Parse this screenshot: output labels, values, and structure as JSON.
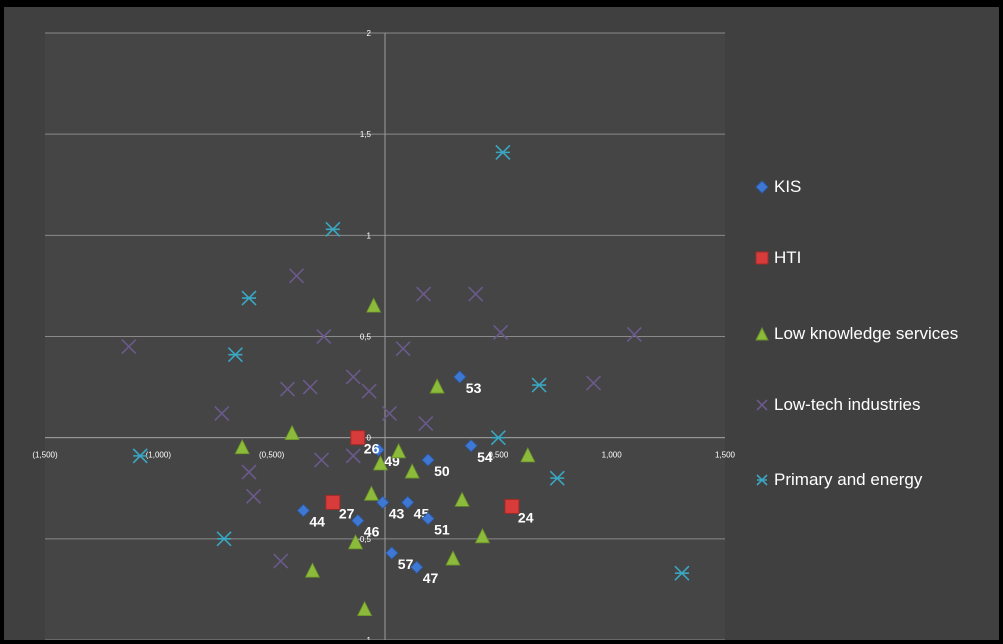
{
  "chart_data": {
    "type": "scatter",
    "title": "",
    "xlabel": "",
    "ylabel": "",
    "xlim": [
      -1.5,
      1.5
    ],
    "ylim": [
      -1,
      2
    ],
    "grid": "horizontal",
    "legend_position": "right",
    "x_ticks": [
      "(1,500)",
      "(1,000)",
      "(0,500)",
      "0",
      "0,500",
      "1,000",
      "1,500"
    ],
    "y_ticks": [
      {
        "value": 2,
        "label": "2"
      },
      {
        "value": 1.5,
        "label": "1,5"
      },
      {
        "value": 1,
        "label": "1"
      },
      {
        "value": 0.5,
        "label": "0,5"
      },
      {
        "value": 0,
        "label": "0"
      },
      {
        "value": -0.5,
        "label": "-0,5"
      },
      {
        "value": -1,
        "label": "-1"
      }
    ],
    "colors": {
      "kis": "#3e78d2",
      "hti": "#d83c3a",
      "low_knowledge": "#8cba3a",
      "low_tech": "#6a5a8c",
      "primary": "#3aa6c2"
    },
    "series": [
      {
        "name": "KIS",
        "key": "kis",
        "marker": "diamond",
        "points": [
          {
            "x": 0.33,
            "y": 0.3,
            "label": "53"
          },
          {
            "x": 0.38,
            "y": -0.04,
            "label": "54"
          },
          {
            "x": -0.03,
            "y": -0.06,
            "label": "49"
          },
          {
            "x": 0.19,
            "y": -0.11,
            "label": "50"
          },
          {
            "x": -0.01,
            "y": -0.32,
            "label": "43"
          },
          {
            "x": 0.1,
            "y": -0.32,
            "label": "45"
          },
          {
            "x": -0.36,
            "y": -0.36,
            "label": "44"
          },
          {
            "x": -0.12,
            "y": -0.41,
            "label": "46"
          },
          {
            "x": 0.19,
            "y": -0.4,
            "label": "51"
          },
          {
            "x": 0.03,
            "y": -0.57,
            "label": "57"
          },
          {
            "x": 0.14,
            "y": -0.64,
            "label": "47"
          }
        ]
      },
      {
        "name": "HTI",
        "key": "hti",
        "marker": "square",
        "points": [
          {
            "x": -0.12,
            "y": 0.0,
            "label": "26"
          },
          {
            "x": -0.23,
            "y": -0.32,
            "label": "27"
          },
          {
            "x": 0.56,
            "y": -0.34,
            "label": "24"
          }
        ]
      },
      {
        "name": "Low knowledge services",
        "key": "low_knowledge",
        "marker": "triangle",
        "points": [
          {
            "x": -0.05,
            "y": 0.65
          },
          {
            "x": 0.23,
            "y": 0.25
          },
          {
            "x": -0.41,
            "y": 0.02
          },
          {
            "x": -0.63,
            "y": -0.05
          },
          {
            "x": 0.06,
            "y": -0.07
          },
          {
            "x": -0.02,
            "y": -0.13
          },
          {
            "x": 0.12,
            "y": -0.17
          },
          {
            "x": 0.63,
            "y": -0.09
          },
          {
            "x": -0.06,
            "y": -0.28
          },
          {
            "x": 0.34,
            "y": -0.31
          },
          {
            "x": 0.43,
            "y": -0.49
          },
          {
            "x": -0.13,
            "y": -0.52
          },
          {
            "x": 0.3,
            "y": -0.6
          },
          {
            "x": -0.32,
            "y": -0.66
          },
          {
            "x": -0.09,
            "y": -0.85
          }
        ]
      },
      {
        "name": "Low-tech industries",
        "key": "low_tech",
        "marker": "x",
        "points": [
          {
            "x": -0.39,
            "y": 0.8
          },
          {
            "x": 0.17,
            "y": 0.71
          },
          {
            "x": 0.4,
            "y": 0.71
          },
          {
            "x": 0.51,
            "y": 0.52
          },
          {
            "x": 1.1,
            "y": 0.51
          },
          {
            "x": -0.27,
            "y": 0.5
          },
          {
            "x": 0.08,
            "y": 0.44
          },
          {
            "x": -1.13,
            "y": 0.45
          },
          {
            "x": -0.14,
            "y": 0.3
          },
          {
            "x": -0.43,
            "y": 0.24
          },
          {
            "x": -0.33,
            "y": 0.25
          },
          {
            "x": -0.07,
            "y": 0.23
          },
          {
            "x": 0.92,
            "y": 0.27
          },
          {
            "x": 0.02,
            "y": 0.12
          },
          {
            "x": -0.72,
            "y": 0.12
          },
          {
            "x": 0.18,
            "y": 0.07
          },
          {
            "x": -0.28,
            "y": -0.11
          },
          {
            "x": -0.14,
            "y": -0.09
          },
          {
            "x": -0.6,
            "y": -0.17
          },
          {
            "x": -0.58,
            "y": -0.29
          },
          {
            "x": -0.46,
            "y": -0.61
          }
        ]
      },
      {
        "name": "Primary and energy",
        "key": "primary",
        "marker": "asterisk",
        "points": [
          {
            "x": 0.52,
            "y": 1.41
          },
          {
            "x": -0.23,
            "y": 1.03
          },
          {
            "x": -0.6,
            "y": 0.69
          },
          {
            "x": -0.66,
            "y": 0.41
          },
          {
            "x": 0.68,
            "y": 0.26
          },
          {
            "x": 0.5,
            "y": 0.0
          },
          {
            "x": -1.08,
            "y": -0.09
          },
          {
            "x": 0.76,
            "y": -0.2
          },
          {
            "x": -0.71,
            "y": -0.5
          },
          {
            "x": 1.31,
            "y": -0.67
          }
        ]
      }
    ]
  }
}
